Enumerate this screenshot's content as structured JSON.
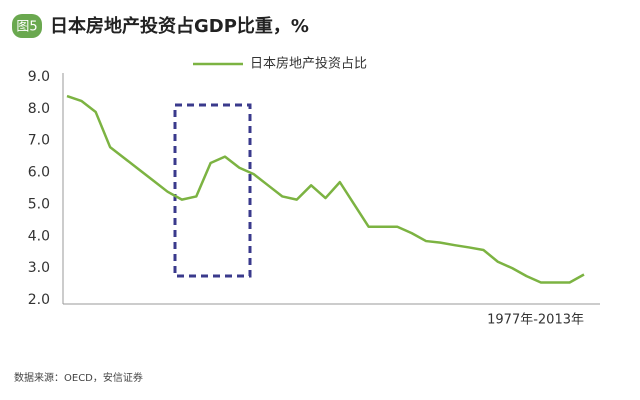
{
  "badge": "图5",
  "chart_data": {
    "type": "line",
    "title": "日本房地产投资占GDP比重，%",
    "xlabel": "1977年-2013年",
    "categories": [
      null,
      null,
      null,
      null,
      null,
      null,
      null,
      null,
      null,
      null,
      null,
      null,
      null,
      null,
      null,
      null,
      null,
      null,
      null,
      null,
      null,
      null,
      null,
      null,
      null,
      null,
      null,
      null,
      null,
      null,
      null,
      null,
      null,
      null,
      null,
      null,
      null
    ],
    "series": [
      {
        "name": "日本房地产投资占比",
        "color": "#7cb342",
        "values": [
          8.4,
          8.25,
          7.9,
          6.8,
          6.45,
          6.1,
          5.75,
          5.4,
          5.15,
          5.25,
          6.3,
          6.5,
          6.15,
          5.95,
          5.6,
          5.25,
          5.15,
          5.6,
          5.2,
          5.7,
          5.0,
          4.3,
          4.3,
          4.3,
          4.1,
          3.85,
          3.8,
          3.72,
          3.65,
          3.57,
          3.2,
          3.0,
          2.75,
          2.55,
          2.55,
          2.55,
          2.8
        ]
      }
    ],
    "ylim": [
      2.0,
      9.0
    ],
    "yticks": [
      {
        "value": 2,
        "label": "2.0"
      },
      {
        "value": 3,
        "label": "3.0"
      },
      {
        "value": 4,
        "label": "4.0"
      },
      {
        "value": 5,
        "label": "5.0"
      },
      {
        "value": 6,
        "label": "6.0"
      },
      {
        "value": 7,
        "label": "7.0"
      },
      {
        "value": 8,
        "label": "8.0"
      },
      {
        "value": 9,
        "label": "9.0"
      }
    ],
    "grid": false,
    "legend": "top"
  },
  "source": "数据来源：OECD，安信证券"
}
